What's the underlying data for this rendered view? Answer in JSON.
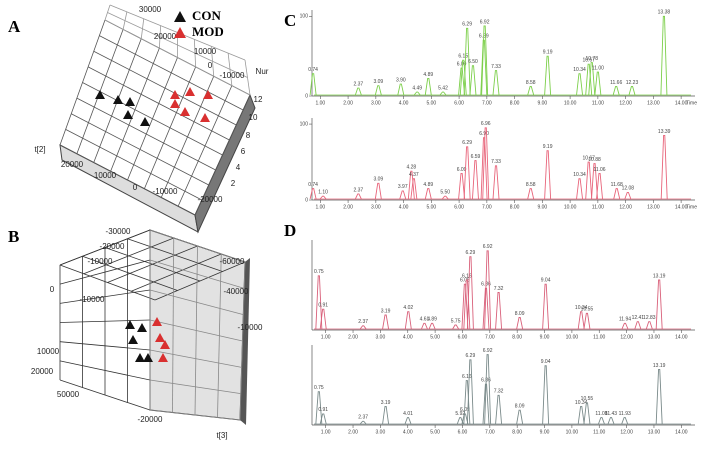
{
  "panel_labels": [
    "A",
    "B",
    "C",
    "D"
  ],
  "legend": [
    {
      "name": "CON",
      "color": "#111111"
    },
    {
      "name": "MOD",
      "color": "#d93030"
    }
  ],
  "score_plot_a": {
    "ticks": [
      "30000",
      "20000",
      "10000",
      "0",
      "-10000",
      "Nur",
      "12",
      "10",
      "8",
      "6",
      "4",
      "2",
      "10000",
      "20000",
      "0",
      "-10000",
      "-20000",
      "t[2]"
    ]
  },
  "score_plot_b": {
    "ticks": [
      "-30000",
      "-20000",
      "-10000",
      "0",
      "-10000",
      "10000",
      "20000",
      "-60000",
      "-40000",
      "-10000",
      "50000",
      "-20000",
      "t[3]"
    ]
  },
  "chart_data": [
    {
      "type": "line",
      "color": "#7ccf4a",
      "x_label": "Time",
      "x": [
        0.74,
        2.37,
        3.09,
        3.9,
        4.49,
        4.89,
        5.42,
        6.09,
        6.15,
        6.29,
        6.5,
        6.89,
        6.92,
        7.33,
        8.58,
        9.19,
        10.34,
        10.67,
        10.78,
        11.0,
        11.66,
        12.23,
        13.38
      ],
      "values": [
        28,
        10,
        13,
        15,
        5,
        22,
        5,
        35,
        45,
        85,
        38,
        70,
        88,
        32,
        12,
        50,
        28,
        40,
        42,
        30,
        12,
        12,
        100
      ],
      "peak_labels": [
        "0.74",
        "2.37",
        "3.09",
        "3.90",
        "4.49",
        "4.89",
        "5.42",
        "6.09",
        "6.15",
        "6.29",
        "6.50",
        "6.89",
        "6.92",
        "7.33",
        "8.58",
        "9.19",
        "10.34",
        "10.67",
        "10.78",
        "11.00",
        "11.66",
        "12.23",
        "13.38"
      ],
      "xlim": [
        0.7,
        14.5
      ],
      "ylim": [
        0,
        108
      ],
      "yticks": [
        0,
        100
      ],
      "xticks": [
        {
          "value": 1,
          "label": "1.00"
        },
        {
          "value": 2,
          "label": "2.00"
        },
        {
          "value": 3,
          "label": "3.00"
        },
        {
          "value": 4,
          "label": "4.00"
        },
        {
          "value": 5,
          "label": "5.00"
        },
        {
          "value": 6,
          "label": "6.00"
        },
        {
          "value": 7,
          "label": "7.00"
        },
        {
          "value": 8,
          "label": "8.00"
        },
        {
          "value": 9,
          "label": "9.00"
        },
        {
          "value": 10,
          "label": "10.00"
        },
        {
          "value": 11,
          "label": "11.00"
        },
        {
          "value": 12,
          "label": "12.00"
        },
        {
          "value": 13,
          "label": "13.00"
        },
        {
          "value": 14,
          "label": "14.00"
        }
      ]
    },
    {
      "type": "line",
      "color": "#e8647a",
      "x_label": "Time",
      "x": [
        0.74,
        1.1,
        2.37,
        3.09,
        3.97,
        4.28,
        4.37,
        4.89,
        5.5,
        6.09,
        6.29,
        6.59,
        6.9,
        6.96,
        7.33,
        8.58,
        9.19,
        10.34,
        10.67,
        10.88,
        11.06,
        11.68,
        12.08,
        13.39
      ],
      "values": [
        15,
        5,
        8,
        22,
        12,
        38,
        28,
        15,
        5,
        35,
        70,
        52,
        82,
        95,
        45,
        15,
        65,
        28,
        50,
        48,
        35,
        15,
        10,
        85
      ],
      "peak_labels": [
        "0.74",
        "1.10",
        "2.37",
        "3.09",
        "3.97",
        "4.28",
        "4.37",
        "4.89",
        "5.50",
        "6.09",
        "6.29",
        "6.59",
        "6.90",
        "6.96",
        "7.33",
        "8.58",
        "9.19",
        "10.34",
        "10.67",
        "10.88",
        "11.06",
        "11.68",
        "12.08",
        "13.39"
      ],
      "xlim": [
        0.7,
        14.5
      ],
      "ylim": [
        0,
        108
      ],
      "yticks": [
        0,
        100
      ],
      "xticks": [
        {
          "value": 1,
          "label": "1.00"
        },
        {
          "value": 2,
          "label": "2.00"
        },
        {
          "value": 3,
          "label": "3.00"
        },
        {
          "value": 4,
          "label": "4.00"
        },
        {
          "value": 5,
          "label": "5.00"
        },
        {
          "value": 6,
          "label": "6.00"
        },
        {
          "value": 7,
          "label": "7.00"
        },
        {
          "value": 8,
          "label": "8.00"
        },
        {
          "value": 9,
          "label": "9.00"
        },
        {
          "value": 10,
          "label": "10.00"
        },
        {
          "value": 11,
          "label": "11.00"
        },
        {
          "value": 12,
          "label": "12.00"
        },
        {
          "value": 13,
          "label": "13.00"
        },
        {
          "value": 14,
          "label": "14.00"
        }
      ]
    },
    {
      "type": "line",
      "color": "#d9607a",
      "x": [
        0.75,
        0.91,
        2.37,
        3.19,
        4.02,
        4.61,
        4.89,
        5.75,
        6.09,
        6.16,
        6.29,
        6.86,
        6.92,
        7.32,
        8.09,
        9.04,
        10.34,
        10.55,
        11.94,
        12.41,
        12.83,
        13.19
      ],
      "values": [
        65,
        25,
        5,
        18,
        22,
        8,
        8,
        6,
        55,
        60,
        88,
        50,
        95,
        45,
        15,
        55,
        22,
        20,
        8,
        10,
        10,
        60
      ],
      "peak_labels": [
        "0.75",
        "0.91",
        "2.37",
        "3.19",
        "4.02",
        "4.61",
        "4.89",
        "5.75",
        "6.09",
        "6.16",
        "6.29",
        "6.86",
        "6.92",
        "7.32",
        "8.09",
        "9.04",
        "10.34",
        "10.55",
        "11.94",
        "12.41",
        "12.83",
        "13.19"
      ],
      "xlim": [
        0.5,
        14.5
      ],
      "ylim": [
        0,
        108
      ],
      "xticks": [
        {
          "value": 1,
          "label": "1.00"
        },
        {
          "value": 2,
          "label": "2.00"
        },
        {
          "value": 3,
          "label": "3.00"
        },
        {
          "value": 4,
          "label": "4.00"
        },
        {
          "value": 5,
          "label": "5.00"
        },
        {
          "value": 6,
          "label": "6.00"
        },
        {
          "value": 7,
          "label": "7.00"
        },
        {
          "value": 8,
          "label": "8.00"
        },
        {
          "value": 9,
          "label": "9.00"
        },
        {
          "value": 10,
          "label": "10.00"
        },
        {
          "value": 11,
          "label": "11.00"
        },
        {
          "value": 12,
          "label": "12.00"
        },
        {
          "value": 13,
          "label": "13.00"
        },
        {
          "value": 14,
          "label": "14.00"
        }
      ]
    },
    {
      "type": "line",
      "color": "#7a8a8a",
      "x": [
        0.75,
        0.91,
        2.37,
        3.19,
        4.01,
        5.92,
        6.09,
        6.16,
        6.29,
        6.86,
        6.92,
        7.32,
        8.09,
        9.04,
        10.34,
        10.55,
        11.08,
        11.43,
        11.93,
        13.19
      ],
      "values": [
        45,
        15,
        5,
        25,
        10,
        10,
        15,
        60,
        88,
        55,
        95,
        40,
        20,
        80,
        25,
        30,
        10,
        10,
        10,
        75
      ],
      "peak_labels": [
        "0.75",
        "0.91",
        "2.37",
        "3.19",
        "4.01",
        "5.92",
        "6.09",
        "6.16",
        "6.29",
        "6.86",
        "6.92",
        "7.32",
        "8.09",
        "9.04",
        "10.34",
        "10.55",
        "11.08",
        "11.43",
        "11.93",
        "13.19"
      ],
      "xlim": [
        0.5,
        14.5
      ],
      "ylim": [
        0,
        108
      ],
      "xticks": [
        {
          "value": 1,
          "label": "1.00"
        },
        {
          "value": 2,
          "label": "2.00"
        },
        {
          "value": 3,
          "label": "3.00"
        },
        {
          "value": 4,
          "label": "4.00"
        },
        {
          "value": 5,
          "label": "5.00"
        },
        {
          "value": 6,
          "label": "6.00"
        },
        {
          "value": 7,
          "label": "7.00"
        },
        {
          "value": 8,
          "label": "8.00"
        },
        {
          "value": 9,
          "label": "9.00"
        },
        {
          "value": 10,
          "label": "10.00"
        },
        {
          "value": 11,
          "label": "11.00"
        },
        {
          "value": 12,
          "label": "12.00"
        },
        {
          "value": 13,
          "label": "13.00"
        },
        {
          "value": 14,
          "label": "14.00"
        }
      ]
    }
  ]
}
